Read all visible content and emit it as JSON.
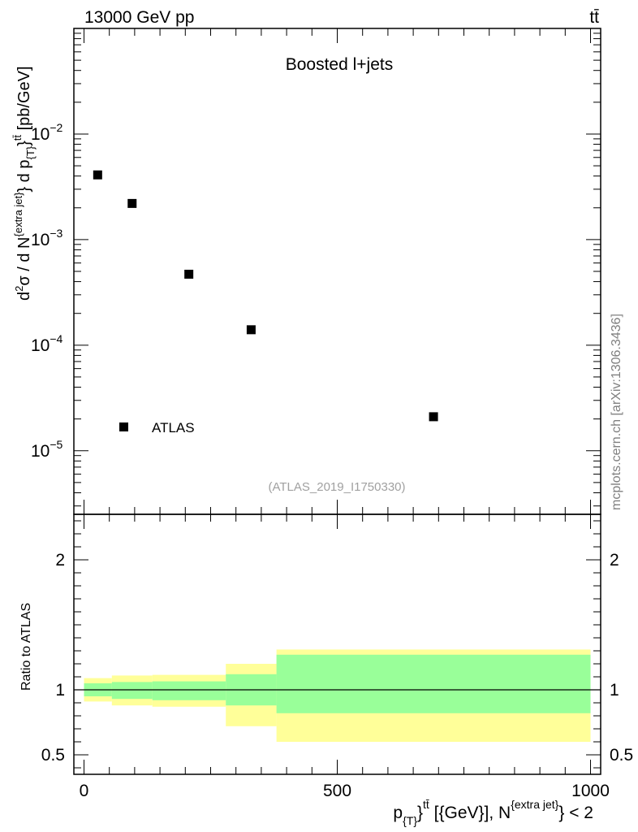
{
  "header": {
    "left": "13000 GeV pp",
    "right": "tt̄"
  },
  "watermark": {
    "side": "mcplots.cern.ch [arXiv:1306.3436]",
    "analysis": "(ATLAS_2019_I1750330)"
  },
  "chart_data": [
    {
      "type": "scatter",
      "title": "Boosted l+jets",
      "ylabel": "d²σ / d N^{extra jet} d p_{T}^{t̄t} [pb/GeV]",
      "ylabel_parts": {
        "a": "d",
        "b": "2",
        "c": "σ  /  d N",
        "d": "{extra jet}",
        "e": "} d p",
        "f": "{T}",
        "g": "}",
        "h": "tt̄",
        "i": " [pb/GeV]"
      },
      "yscale": "log",
      "ylim": [
        2.5e-06,
        0.1
      ],
      "xlim": [
        -20,
        1020
      ],
      "y_ticks": [
        {
          "value": 0.01,
          "base": "10",
          "exp": "−2"
        },
        {
          "value": 0.001,
          "base": "10",
          "exp": "−3"
        },
        {
          "value": 0.0001,
          "base": "10",
          "exp": "−4"
        },
        {
          "value": 1e-05,
          "base": "10",
          "exp": "−5"
        }
      ],
      "series": [
        {
          "name": "ATLAS",
          "color": "#000000",
          "marker": "square",
          "x": [
            27,
            95,
            207,
            330,
            690
          ],
          "y": [
            0.0041,
            0.0022,
            0.00047,
            0.00014,
            2.1e-05
          ]
        }
      ],
      "legend": {
        "position": "bottom-left",
        "entries": [
          "ATLAS"
        ]
      }
    },
    {
      "type": "area",
      "ylabel": "Ratio to ATLAS",
      "xlabel": "p_{T}^{tt̄} [{GeV}], N^{extra jet} < 2",
      "xlabel_parts": {
        "a": "p",
        "b": "{T}",
        "c": "}",
        "d": "tt̄",
        "e": " [{GeV}], N",
        "f": "{extra jet}",
        "g": "} < 2"
      },
      "ylim": [
        0.35,
        2.35
      ],
      "xlim": [
        -20,
        1020
      ],
      "x_ticks": [
        0,
        500,
        1000
      ],
      "x_tick_labels": [
        "0",
        "500",
        "1000"
      ],
      "y_ticks": [
        0.5,
        1,
        2
      ],
      "y_tick_labels": [
        "0.5",
        "1",
        "2"
      ],
      "reference_line": 1.0,
      "bins": [
        {
          "x0": 0,
          "x1": 55,
          "inner": [
            0.95,
            1.05
          ],
          "outer": [
            0.91,
            1.09
          ]
        },
        {
          "x0": 55,
          "x1": 135,
          "inner": [
            0.93,
            1.06
          ],
          "outer": [
            0.88,
            1.11
          ]
        },
        {
          "x0": 135,
          "x1": 280,
          "inner": [
            0.92,
            1.065
          ],
          "outer": [
            0.87,
            1.115
          ]
        },
        {
          "x0": 280,
          "x1": 380,
          "inner": [
            0.88,
            1.12
          ],
          "outer": [
            0.72,
            1.2
          ]
        },
        {
          "x0": 380,
          "x1": 1000,
          "inner": [
            0.82,
            1.27
          ],
          "outer": [
            0.6,
            1.31
          ]
        }
      ],
      "band_colors": {
        "outer": "#ffff99",
        "inner": "#99ff99"
      }
    }
  ]
}
